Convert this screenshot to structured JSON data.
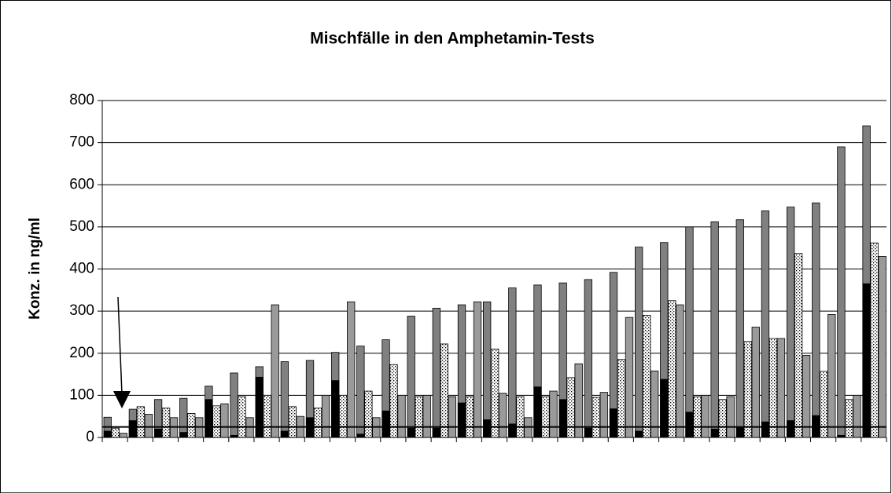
{
  "chart_data": {
    "type": "bar",
    "title": "Mischfälle in den Amphetamin-Tests",
    "y_label": "Konz. in ng/ml",
    "categories": [
      null,
      null,
      null,
      null,
      null,
      null,
      null,
      null,
      null,
      null,
      null,
      null,
      null,
      null,
      null,
      null,
      null,
      null,
      null,
      null,
      null,
      null,
      null,
      null,
      null,
      null,
      null,
      null,
      null,
      null,
      null
    ],
    "series": [
      {
        "color": "#808080",
        "values": [
          48,
          67,
          90,
          93,
          122,
          153,
          168,
          180,
          183,
          202,
          217,
          232,
          288,
          307,
          315,
          322,
          355,
          362,
          367,
          375,
          392,
          452,
          463,
          500,
          512,
          517,
          538,
          547,
          557,
          690,
          740
        ]
      },
      {
        "color": "#000000",
        "overlay": 0,
        "values": [
          15,
          40,
          20,
          12,
          90,
          5,
          143,
          15,
          47,
          135,
          8,
          63,
          22,
          22,
          82,
          42,
          32,
          120,
          90,
          22,
          68,
          15,
          138,
          60,
          20,
          25,
          37,
          40,
          52,
          5,
          365
        ]
      },
      {
        "color": "#ffffff",
        "hatch": "dots",
        "values": [
          22,
          73,
          70,
          57,
          75,
          97,
          100,
          73,
          70,
          100,
          110,
          173,
          97,
          222,
          97,
          210,
          97,
          97,
          142,
          95,
          185,
          290,
          325,
          97,
          90,
          228,
          235,
          437,
          157,
          90,
          462
        ]
      },
      {
        "color": "#9a9a9a",
        "values": [
          10,
          55,
          47,
          47,
          80,
          47,
          315,
          50,
          100,
          322,
          47,
          100,
          100,
          97,
          322,
          105,
          47,
          110,
          175,
          107,
          285,
          158,
          315,
          100,
          97,
          262,
          235,
          195,
          292,
          100,
          430
        ]
      }
    ],
    "threshold": 25,
    "ylim": [
      0,
      800
    ],
    "yticks": [
      0,
      100,
      200,
      300,
      400,
      500,
      600,
      700,
      800
    ],
    "grid": true
  }
}
